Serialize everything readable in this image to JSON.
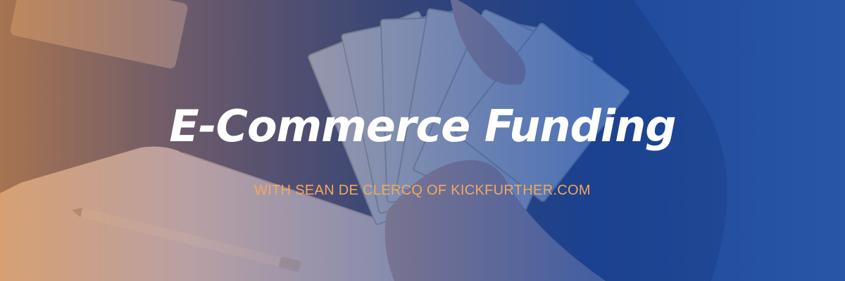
{
  "banner": {
    "title": "E-Commerce Funding",
    "subtitle": "WITH SEAN DE CLERCQ OF KICKFURTHER.COM"
  },
  "colors": {
    "title": "#ffffff",
    "subtitle": "#f3a85e",
    "overlay_left": "#d68c50",
    "overlay_right": "#1e5abe"
  }
}
